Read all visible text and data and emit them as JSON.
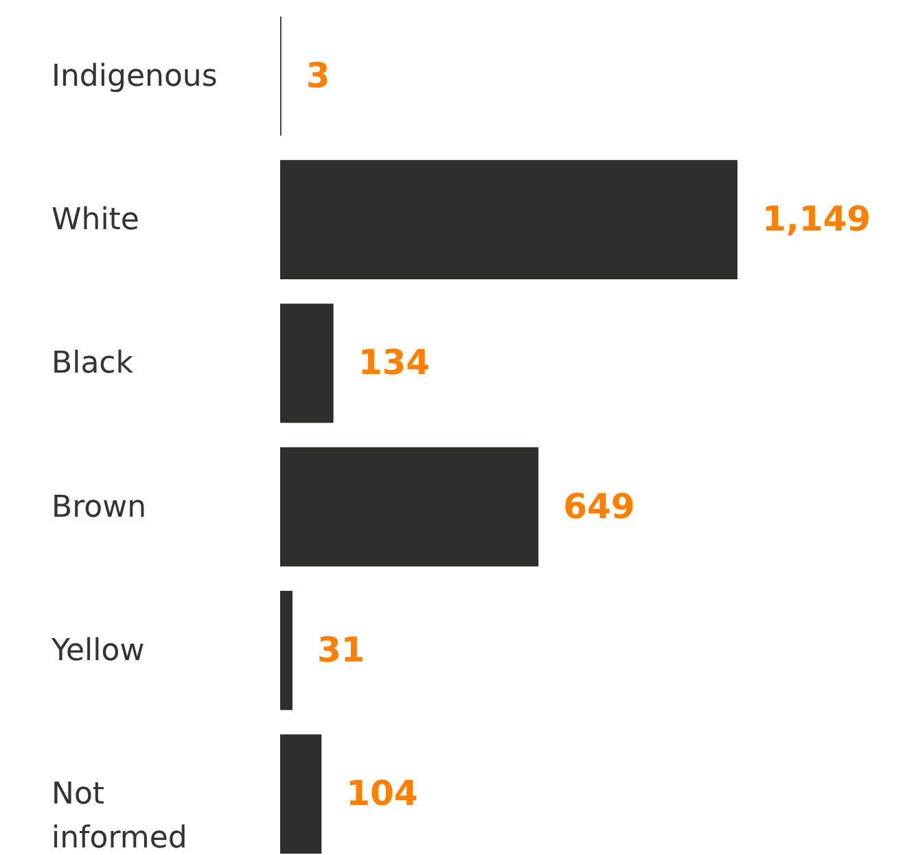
{
  "chart_data": {
    "type": "bar",
    "orientation": "horizontal",
    "categories": [
      "Indigenous",
      "White",
      "Black",
      "Brown",
      "Yellow",
      "Not informed"
    ],
    "values": [
      3,
      1149,
      134,
      649,
      31,
      104
    ],
    "value_labels": [
      "3",
      "1,149",
      "134",
      "649",
      "31",
      "104"
    ],
    "color": "#2e2e2c",
    "grid": false
  }
}
